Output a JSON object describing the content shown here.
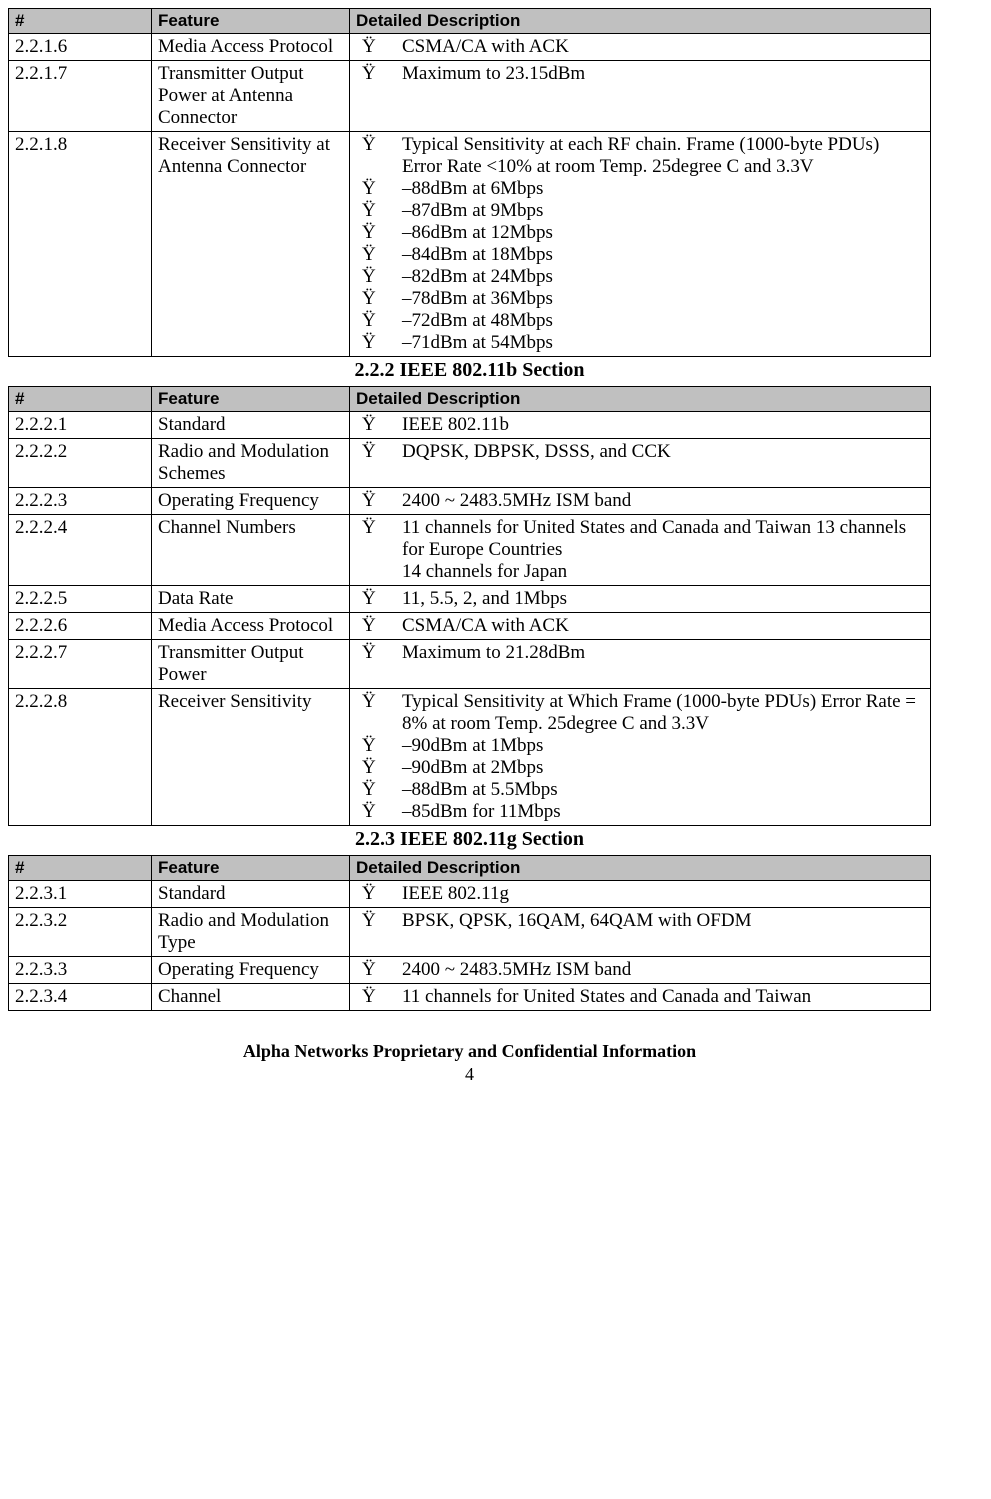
{
  "headers": {
    "num": "#",
    "feature": "Feature",
    "desc": "Detailed Description"
  },
  "bullet_glyph": "Ÿ",
  "section_titles": {
    "s2": "2.2.2 IEEE 802.11b Section",
    "s3": "2.2.3 IEEE 802.11g Section"
  },
  "t1": {
    "r1": {
      "num": "2.2.1.6",
      "feature": "Media Access Protocol",
      "items": [
        "CSMA/CA with ACK"
      ]
    },
    "r2": {
      "num": "2.2.1.7",
      "feature": "Transmitter Output Power at Antenna Connector",
      "items": [
        "Maximum to 23.15dBm"
      ]
    },
    "r3": {
      "num": "2.2.1.8",
      "feature": "Receiver Sensitivity at Antenna Connector",
      "items": [
        "Typical Sensitivity at each RF chain.    Frame (1000-byte PDUs) Error Rate <10%    at room Temp. 25degree C and 3.3V",
        "–88dBm at 6Mbps",
        "–87dBm at 9Mbps",
        "–86dBm at 12Mbps",
        "–84dBm at 18Mbps",
        "–82dBm at 24Mbps",
        "–78dBm at 36Mbps",
        "–72dBm at 48Mbps",
        "–71dBm at 54Mbps"
      ]
    }
  },
  "t2": {
    "r1": {
      "num": "2.2.2.1",
      "feature": "Standard",
      "items": [
        "IEEE 802.11b"
      ]
    },
    "r2": {
      "num": "2.2.2.2",
      "feature": "Radio and Modulation Schemes",
      "items": [
        "DQPSK, DBPSK, DSSS, and CCK"
      ]
    },
    "r3": {
      "num": "2.2.2.3",
      "feature": "Operating Frequency",
      "items": [
        "2400 ~ 2483.5MHz ISM band"
      ]
    },
    "r4": {
      "num": "2.2.2.4",
      "feature": "Channel Numbers",
      "items": [
        "11 channels for United States and Canada and Taiwan 13 channels for Europe Countries\n14 channels for Japan"
      ]
    },
    "r5": {
      "num": "2.2.2.5",
      "feature": "Data Rate",
      "items": [
        "11, 5.5, 2, and 1Mbps"
      ]
    },
    "r6": {
      "num": "2.2.2.6",
      "feature": "Media Access Protocol",
      "items": [
        "CSMA/CA with ACK"
      ]
    },
    "r7": {
      "num": "2.2.2.7",
      "feature": "Transmitter Output Power",
      "items": [
        "Maximum to 21.28dBm"
      ]
    },
    "r8": {
      "num": "2.2.2.8",
      "feature": "Receiver Sensitivity",
      "items": [
        "Typical Sensitivity at Which Frame (1000-byte PDUs) Error Rate = 8% at room Temp. 25degree C and 3.3V",
        "–90dBm at 1Mbps",
        "–90dBm at 2Mbps",
        "–88dBm at 5.5Mbps",
        "–85dBm for 11Mbps"
      ]
    }
  },
  "t3": {
    "r1": {
      "num": "2.2.3.1",
      "feature": "Standard",
      "items": [
        "IEEE 802.11g"
      ]
    },
    "r2": {
      "num": "2.2.3.2",
      "feature": "Radio and Modulation Type",
      "items": [
        "BPSK, QPSK, 16QAM, 64QAM with OFDM"
      ]
    },
    "r3": {
      "num": "2.2.3.3",
      "feature": "Operating Frequency",
      "items": [
        "2400 ~ 2483.5MHz ISM band"
      ]
    },
    "r4": {
      "num": "2.2.3.4",
      "feature": "Channel",
      "items": [
        "11 channels for United States and Canada and Taiwan"
      ]
    }
  },
  "footer": "Alpha Networks Proprietary and Confidential Information",
  "page": "4"
}
